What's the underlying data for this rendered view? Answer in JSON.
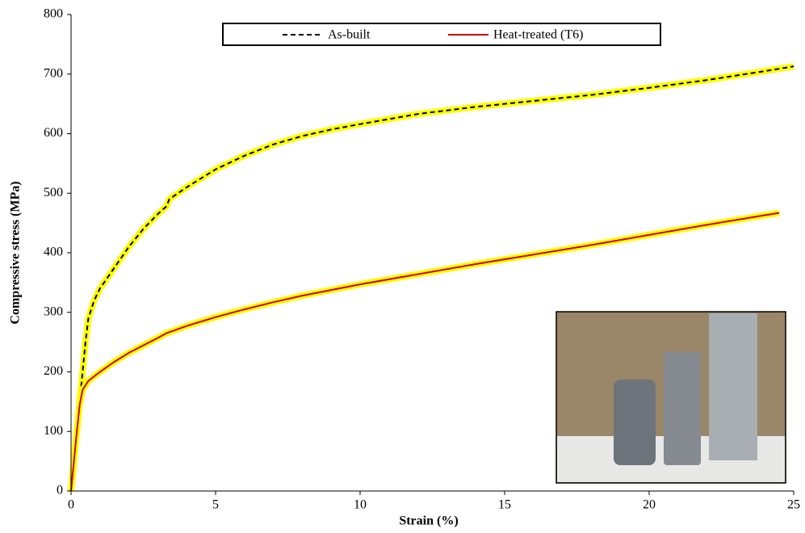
{
  "chart_data": {
    "type": "line",
    "x_label": "Strain (%)",
    "y_label": "Compressive stress (MPa)",
    "xlim": [
      0,
      25
    ],
    "xticks": [
      0,
      5,
      10,
      15,
      20,
      25
    ],
    "ylim": [
      0,
      800
    ],
    "yticks": [
      0,
      100,
      200,
      300,
      400,
      500,
      600,
      700,
      800
    ],
    "grid": false,
    "legend": "top",
    "highlight": "#ffff00",
    "series": [
      {
        "name": "As-built",
        "color": "#000000",
        "dashed": true,
        "x": [
          0,
          0.1,
          0.2,
          0.3,
          0.4,
          0.5,
          0.6,
          0.8,
          1,
          1.5,
          2,
          2.5,
          3,
          3.3,
          3.4,
          4,
          5,
          6,
          7,
          8,
          9,
          10,
          12,
          14,
          16,
          18,
          20,
          22,
          24,
          25
        ],
        "values": [
          0,
          50,
          100,
          150,
          200,
          250,
          290,
          320,
          340,
          375,
          410,
          440,
          465,
          478,
          490,
          510,
          540,
          563,
          582,
          596,
          607,
          616,
          633,
          645,
          655,
          665,
          677,
          690,
          705,
          713
        ]
      },
      {
        "name": "Heat-treated (T6)",
        "color": "#cc0000",
        "dashed": false,
        "x": [
          0,
          0.1,
          0.2,
          0.3,
          0.4,
          0.6,
          1,
          1.5,
          2,
          3,
          3.3,
          4,
          5,
          6,
          7,
          8,
          10,
          12,
          14,
          16,
          18,
          20,
          22,
          24,
          24.5
        ],
        "values": [
          0,
          50,
          100,
          145,
          170,
          185,
          200,
          217,
          232,
          257,
          265,
          277,
          292,
          305,
          317,
          328,
          347,
          364,
          381,
          397,
          413,
          430,
          447,
          463,
          467
        ]
      }
    ]
  }
}
